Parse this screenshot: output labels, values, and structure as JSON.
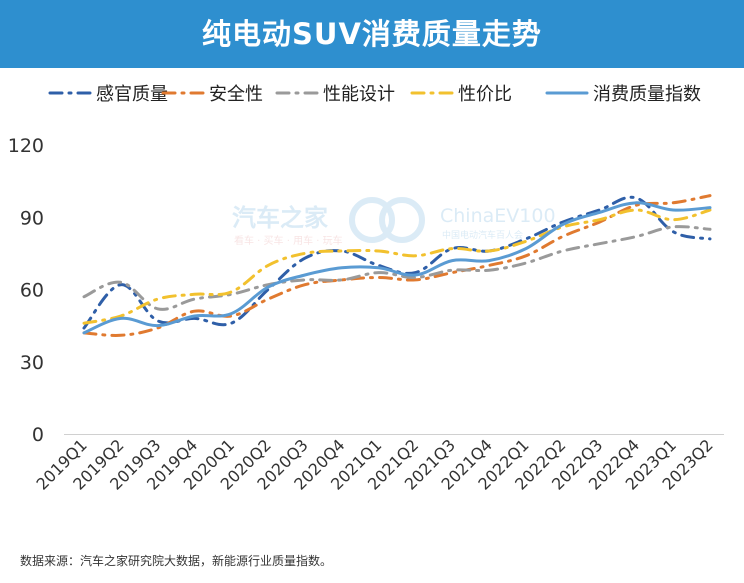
{
  "header": {
    "title": "纯电动SUV消费质量走势"
  },
  "source_note": "数据来源：汽车之家研究院大数据，新能源行业质量指数。",
  "watermark": {
    "brand_cn": "汽车之家",
    "brand_sub": "看车 · 买车 · 用车 · 玩车",
    "brand2": "ChinaEV100",
    "brand2_sub": "中国电动汽车百人会"
  },
  "colors": {
    "banner": "#2e8fcf",
    "感官质量": "#2f5fa8",
    "安全性": "#e07a30",
    "性能设计": "#9a9a9a",
    "性价比": "#f2c12e",
    "消费质量指数": "#5a9bd3"
  },
  "chart_data": {
    "type": "line",
    "categories": [
      "2019Q1",
      "2019Q2",
      "2019Q3",
      "2019Q4",
      "2020Q1",
      "2020Q2",
      "2020Q3",
      "2020Q4",
      "2021Q1",
      "2021Q2",
      "2021Q3",
      "2021Q4",
      "2022Q1",
      "2022Q2",
      "2022Q3",
      "2022Q4",
      "2023Q1",
      "2023Q2"
    ],
    "ylim": [
      0,
      120
    ],
    "yticks": [
      "120",
      "90",
      "60",
      "30",
      "0"
    ],
    "legend_position": "top",
    "grid": false,
    "series": [
      {
        "name": "感官质量",
        "dash": "dash-dot",
        "color": "#2f5fa8",
        "width": 3,
        "values": [
          44,
          62,
          47,
          48,
          46,
          60,
          73,
          76,
          70,
          67,
          77,
          76,
          81,
          88,
          93,
          98,
          84,
          81
        ]
      },
      {
        "name": "安全性",
        "dash": "dash-dot",
        "color": "#e07a30",
        "width": 3,
        "values": [
          42,
          41,
          44,
          51,
          49,
          56,
          62,
          64,
          65,
          64,
          67,
          70,
          74,
          82,
          88,
          95,
          96,
          99
        ]
      },
      {
        "name": "性能设计",
        "dash": "dash-dot",
        "color": "#9a9a9a",
        "width": 3,
        "values": [
          57,
          63,
          52,
          56,
          58,
          62,
          64,
          64,
          67,
          65,
          68,
          68,
          71,
          76,
          79,
          82,
          86,
          85
        ]
      },
      {
        "name": "性价比",
        "dash": "dash-dot",
        "color": "#f2c12e",
        "width": 3,
        "values": [
          46,
          49,
          56,
          58,
          59,
          70,
          75,
          76,
          76,
          74,
          77,
          76,
          80,
          86,
          89,
          93,
          89,
          93
        ]
      },
      {
        "name": "消费质量指数",
        "dash": "solid",
        "color": "#5a9bd3",
        "width": 3,
        "values": [
          42,
          48,
          45,
          49,
          50,
          61,
          66,
          69,
          69,
          66,
          72,
          72,
          77,
          87,
          92,
          96,
          93,
          94
        ]
      }
    ]
  }
}
